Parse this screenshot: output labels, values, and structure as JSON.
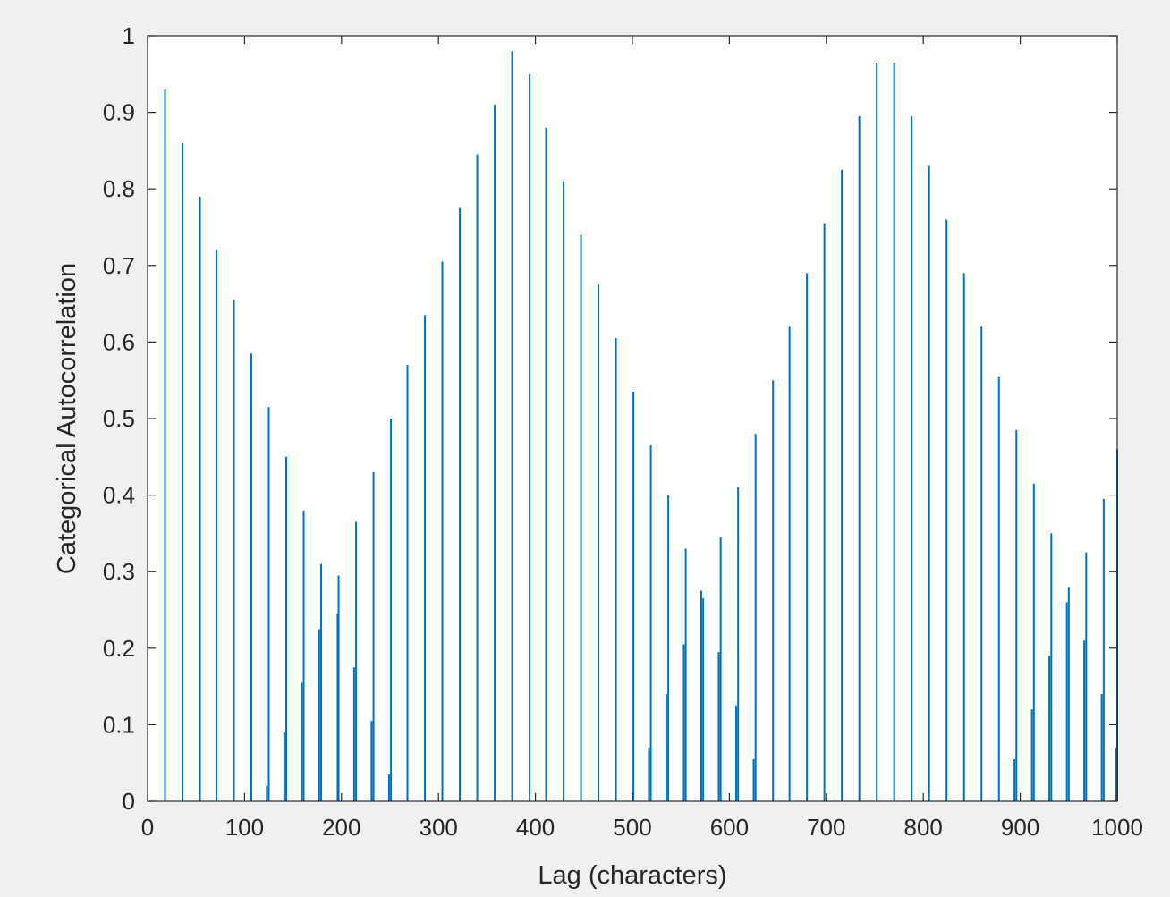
{
  "chart_data": {
    "type": "bar",
    "xlabel": "Lag (characters)",
    "ylabel": "Categorical Autocorrelation",
    "xlim": [
      0,
      1000
    ],
    "ylim": [
      0,
      1
    ],
    "xticks": [
      "0",
      "100",
      "200",
      "300",
      "400",
      "500",
      "600",
      "700",
      "800",
      "900",
      "1000"
    ],
    "yticks": [
      "0",
      "0.1",
      "0.2",
      "0.3",
      "0.4",
      "0.5",
      "0.6",
      "0.7",
      "0.8",
      "0.9",
      "1"
    ],
    "grid": false,
    "series_color": "#0072bd",
    "points": [
      [
        18,
        0.93
      ],
      [
        36,
        0.86
      ],
      [
        54,
        0.79
      ],
      [
        71,
        0.72
      ],
      [
        89,
        0.655
      ],
      [
        107,
        0.585
      ],
      [
        125,
        0.515
      ],
      [
        123,
        0.02
      ],
      [
        143,
        0.45
      ],
      [
        141,
        0.09
      ],
      [
        161,
        0.38
      ],
      [
        159,
        0.155
      ],
      [
        179,
        0.31
      ],
      [
        177,
        0.225
      ],
      [
        197,
        0.295
      ],
      [
        196,
        0.245
      ],
      [
        215,
        0.365
      ],
      [
        213,
        0.175
      ],
      [
        233,
        0.43
      ],
      [
        231,
        0.105
      ],
      [
        251,
        0.5
      ],
      [
        249,
        0.035
      ],
      [
        268,
        0.57
      ],
      [
        286,
        0.635
      ],
      [
        304,
        0.705
      ],
      [
        322,
        0.775
      ],
      [
        340,
        0.845
      ],
      [
        358,
        0.91
      ],
      [
        376,
        0.98
      ],
      [
        394,
        0.95
      ],
      [
        411,
        0.88
      ],
      [
        429,
        0.81
      ],
      [
        447,
        0.74
      ],
      [
        465,
        0.675
      ],
      [
        483,
        0.605
      ],
      [
        501,
        0.535
      ],
      [
        519,
        0.465
      ],
      [
        517,
        0.07
      ],
      [
        537,
        0.4
      ],
      [
        535,
        0.14
      ],
      [
        555,
        0.33
      ],
      [
        553,
        0.205
      ],
      [
        573,
        0.265
      ],
      [
        571,
        0.275
      ],
      [
        591,
        0.345
      ],
      [
        589,
        0.195
      ],
      [
        609,
        0.41
      ],
      [
        607,
        0.125
      ],
      [
        627,
        0.48
      ],
      [
        625,
        0.055
      ],
      [
        645,
        0.55
      ],
      [
        662,
        0.62
      ],
      [
        680,
        0.69
      ],
      [
        698,
        0.755
      ],
      [
        716,
        0.825
      ],
      [
        734,
        0.895
      ],
      [
        752,
        0.965
      ],
      [
        770,
        0.965
      ],
      [
        788,
        0.895
      ],
      [
        806,
        0.83
      ],
      [
        824,
        0.76
      ],
      [
        842,
        0.69
      ],
      [
        860,
        0.62
      ],
      [
        878,
        0.555
      ],
      [
        896,
        0.485
      ],
      [
        894,
        0.055
      ],
      [
        914,
        0.415
      ],
      [
        912,
        0.12
      ],
      [
        932,
        0.35
      ],
      [
        930,
        0.19
      ],
      [
        950,
        0.28
      ],
      [
        948,
        0.26
      ],
      [
        968,
        0.325
      ],
      [
        966,
        0.21
      ],
      [
        986,
        0.395
      ],
      [
        984,
        0.14
      ],
      [
        1000,
        0.46
      ],
      [
        999,
        0.07
      ]
    ]
  }
}
